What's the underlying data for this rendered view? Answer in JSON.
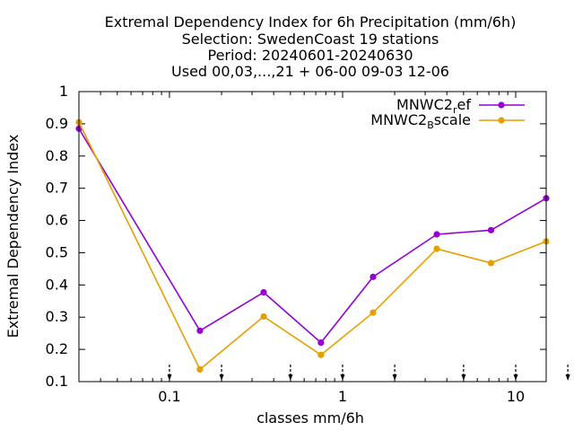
{
  "chart_data": {
    "type": "line",
    "title_lines": [
      "Extremal Dependency Index  for 6h Precipitation (mm/6h)",
      "Selection: SwedenCoast      19 stations",
      "Period: 20240601-20240630",
      "Used 00,03,...,21 + 06-00 09-03 12-06"
    ],
    "xlabel": "classes mm/6h",
    "ylabel": "Extremal Dependency Index",
    "x_scale": "log",
    "xlim": [
      0.03,
      15
    ],
    "ylim": [
      0.1,
      1.0
    ],
    "x_ticks": [
      {
        "value": 0.1,
        "label": "0.1"
      },
      {
        "value": 1,
        "label": "1"
      },
      {
        "value": 10,
        "label": "10"
      }
    ],
    "y_ticks": [
      {
        "value": 0.1,
        "label": "0.1"
      },
      {
        "value": 0.2,
        "label": "0.2"
      },
      {
        "value": 0.3,
        "label": "0.3"
      },
      {
        "value": 0.4,
        "label": "0.4"
      },
      {
        "value": 0.5,
        "label": "0.5"
      },
      {
        "value": 0.6,
        "label": "0.6"
      },
      {
        "value": 0.7,
        "label": "0.7"
      },
      {
        "value": 0.8,
        "label": "0.8"
      },
      {
        "value": 0.9,
        "label": "0.9"
      },
      {
        "value": 1.0,
        "label": "1"
      }
    ],
    "class_markers": [
      0.1,
      0.2,
      0.5,
      1,
      2,
      5,
      10,
      20
    ],
    "legend_position": "top-right",
    "grid": false,
    "series": [
      {
        "name_base": "MNWC2",
        "name_sub": "r",
        "name_rest": "ef",
        "color": "#9400d3",
        "x": [
          0.03,
          0.15,
          0.35,
          0.75,
          1.5,
          3.5,
          7.2,
          15
        ],
        "y": [
          0.885,
          0.258,
          0.377,
          0.221,
          0.425,
          0.557,
          0.57,
          0.669
        ]
      },
      {
        "name_base": "MNWC2",
        "name_sub": "B",
        "name_rest": "scale",
        "color": "#e69f00",
        "x": [
          0.03,
          0.15,
          0.35,
          0.75,
          1.5,
          3.5,
          7.2,
          15
        ],
        "y": [
          0.905,
          0.138,
          0.302,
          0.183,
          0.314,
          0.512,
          0.468,
          0.535
        ]
      }
    ]
  }
}
